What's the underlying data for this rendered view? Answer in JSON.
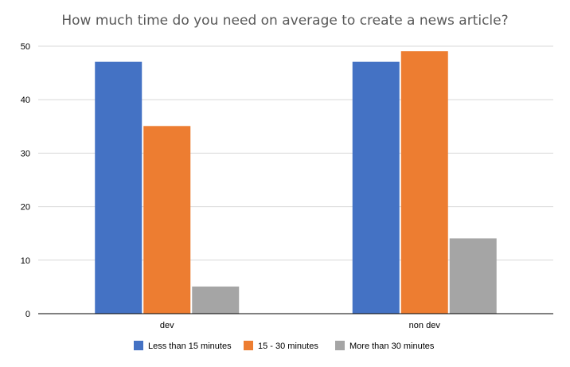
{
  "chart_data": {
    "type": "bar",
    "title": "How much time do you need on average to create a news article?",
    "categories": [
      "dev",
      "non dev"
    ],
    "series": [
      {
        "name": "Less than 15 minutes",
        "values": [
          47,
          47
        ],
        "color": "#4472C4"
      },
      {
        "name": "15 - 30 minutes",
        "values": [
          35,
          49
        ],
        "color": "#ED7D31"
      },
      {
        "name": "More than 30 minutes",
        "values": [
          5,
          14
        ],
        "color": "#A5A5A5"
      }
    ],
    "ylim": [
      0,
      50
    ],
    "yticks": [
      0,
      10,
      20,
      30,
      40,
      50
    ],
    "grid": true,
    "legend_position": "bottom",
    "xlabel": "",
    "ylabel": ""
  }
}
